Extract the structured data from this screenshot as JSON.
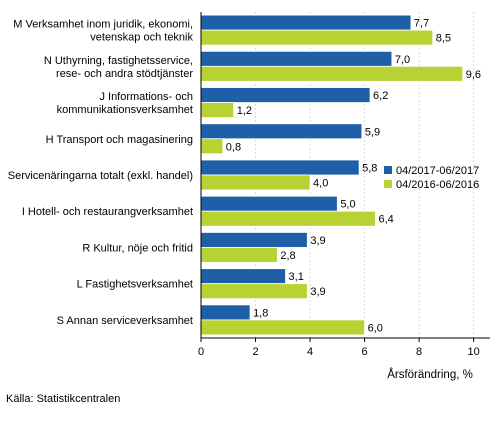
{
  "chart_data": {
    "type": "bar",
    "orientation": "horizontal",
    "categories": [
      [
        "M Verksamhet inom juridik, ekonomi,",
        "vetenskap och teknik"
      ],
      [
        "N Uthyrning, fastighetsservice,",
        "rese- och andra stödtjänster"
      ],
      [
        "J Informations- och",
        "kommunikationsverksamhet"
      ],
      [
        "H Transport och magasinering"
      ],
      [
        "Servicenäringarna totalt (exkl. handel)"
      ],
      [
        "I Hotell- och restaurangverksamhet"
      ],
      [
        "R Kultur, nöje och fritid"
      ],
      [
        "L Fastighetsverksamhet"
      ],
      [
        "S Annan serviceverksamhet"
      ]
    ],
    "series": [
      {
        "name": "04/2017-06/2017",
        "color": "#1f5fa8",
        "values": [
          7.7,
          7.0,
          6.2,
          5.9,
          5.8,
          5.0,
          3.9,
          3.1,
          1.8
        ],
        "labels": [
          "7,7",
          "7,0",
          "6,2",
          "5,9",
          "5,8",
          "5,0",
          "3,9",
          "3,1",
          "1,8"
        ]
      },
      {
        "name": "04/2016-06/2016",
        "color": "#b9d233",
        "values": [
          8.5,
          9.6,
          1.2,
          0.8,
          4.0,
          6.4,
          2.8,
          3.9,
          6.0
        ],
        "labels": [
          "8,5",
          "9,6",
          "1,2",
          "0,8",
          "4,0",
          "6,4",
          "2,8",
          "3,9",
          "6,0"
        ]
      }
    ],
    "xlabel": "Årsförändring, %",
    "xlim": [
      0,
      10.6
    ],
    "xticks": [
      0,
      2,
      4,
      6,
      8,
      10
    ],
    "grid": "vertical",
    "legend": "right"
  },
  "footer": {
    "source": "Källa: Statistikcentralen"
  }
}
